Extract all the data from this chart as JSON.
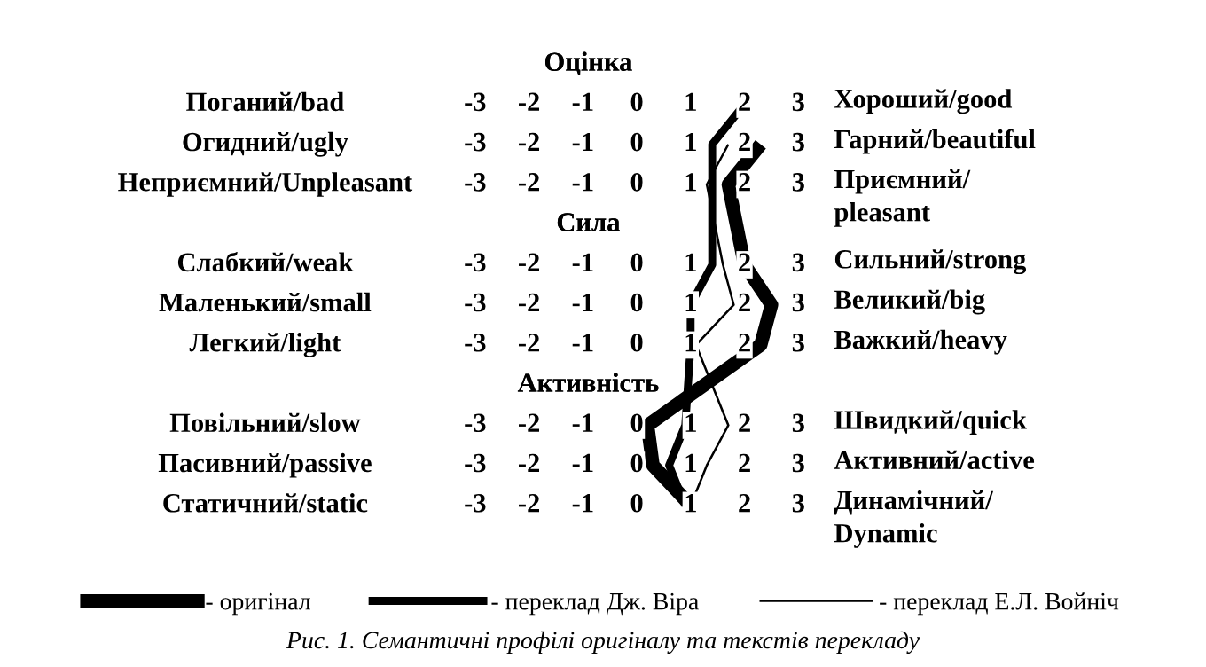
{
  "chart_data": {
    "type": "line",
    "orientation": "horizontal",
    "categories": [
      "Оцінка",
      "Поганий/bad",
      "Огидний/ugly",
      "Неприємний/Unpleasant",
      "Сила",
      "Слабкий/weak",
      "Маленький/small",
      "Легкий/light",
      "Активність",
      "Повільний/slow",
      "Пасивний/passive",
      "Статичний/static"
    ],
    "y2_categories": [
      null,
      "Хороший/good",
      "Гарний/beautiful",
      "Приємний/\npleasant",
      null,
      "Сильний/strong",
      "Великий/big",
      "Важкий/heavy",
      null,
      "Швидкий/quick",
      "Активний/active",
      "Динамічний/\nDynamic"
    ],
    "xlim": [
      -3,
      3
    ],
    "xticks": [
      {
        "value": -3,
        "label": "-3"
      },
      {
        "value": -2,
        "label": "-2"
      },
      {
        "value": -1,
        "label": "-1"
      },
      {
        "value": 0,
        "label": "0"
      },
      {
        "value": 1,
        "label": "1"
      },
      {
        "value": 2,
        "label": "2"
      },
      {
        "value": 3,
        "label": "3"
      }
    ],
    "series": [
      {
        "name": "- оригінал",
        "color": "#000000",
        "values": [
          null,
          null,
          2.3,
          1.7,
          null,
          2.0,
          2.5,
          2.3,
          null,
          0.2,
          0.3,
          1.0
        ]
      },
      {
        "name": "- переклад Дж. Віра",
        "color": "#000000",
        "values": [
          null,
          2.0,
          1.4,
          1.4,
          null,
          1.4,
          1.0,
          1.0,
          null,
          0.9,
          0.6,
          0.9
        ]
      },
      {
        "name": "- переклад Е.Л. Войніч",
        "color": "#000000",
        "values": [
          null,
          null,
          1.7,
          1.3,
          null,
          1.6,
          1.8,
          1.1,
          null,
          1.7,
          1.3,
          1.0
        ]
      }
    ],
    "legend": "bottom",
    "marker": "none",
    "line_style": "solid",
    "annotations": [
      "Рис. 1. Семантичні профілі оригіналу та текстів перекладу"
    ]
  }
}
